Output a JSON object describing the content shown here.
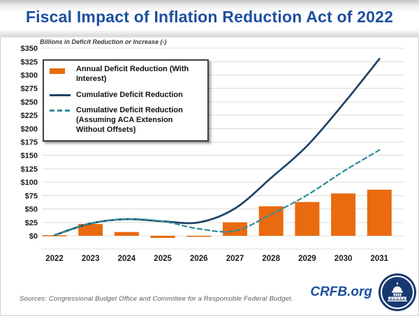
{
  "title": "Fiscal Impact of Inflation Reduction Act of 2022",
  "subtitle": "Billions in Deficit Reduction or Increase (-)",
  "source": "Sources: Congressional Budget Office and Committee for a Responsible Federal Budget.",
  "logo": {
    "text": "CRFB.org"
  },
  "legend": {
    "item1": "Annual Deficit Reduction (With Interest)",
    "item2": "Cumulative Deficit Reduction",
    "item3_line1": "Cumulative Deficit Reduction",
    "item3_line2": "(Assuming ACA Extension Without Offsets)"
  },
  "colors": {
    "title_blue": "#1d4f9f",
    "bar_orange": "#ea6a0f",
    "line_navy": "#1f4367",
    "line_teal_dashed": "#2d8c99",
    "gridline_gray": "#dcdcdc",
    "source_gray": "#595959",
    "logo_navy": "#17386e"
  },
  "chart_data": {
    "type": "bar",
    "subtype": "combo-bar-and-line",
    "title": "Fiscal Impact of Inflation Reduction Act of 2022",
    "ylabel": "Billions in Deficit Reduction or Increase (-)",
    "xlabel": "",
    "categories": [
      "2022",
      "2023",
      "2024",
      "2025",
      "2026",
      "2027",
      "2028",
      "2029",
      "2030",
      "2031"
    ],
    "series": [
      {
        "name": "Annual Deficit Reduction (With Interest)",
        "type": "bar",
        "color": "#ea6a0f",
        "values": [
          1,
          22,
          7,
          -4,
          -2,
          25,
          55,
          63,
          79,
          86
        ]
      },
      {
        "name": "Cumulative Deficit Reduction",
        "type": "line",
        "style": "solid",
        "color": "#1f4367",
        "values": [
          1,
          23,
          31,
          27,
          25,
          51,
          108,
          168,
          246,
          330
        ]
      },
      {
        "name": "Cumulative Deficit Reduction (Assuming ACA Extension Without Offsets)",
        "type": "line",
        "style": "dashed",
        "color": "#2d8c99",
        "values": [
          1,
          23,
          31,
          27,
          13,
          9,
          40,
          76,
          120,
          160
        ]
      }
    ],
    "ylim": [
      -25,
      350
    ],
    "ytick_step": 25,
    "ytick_labels": [
      "$0",
      "$25",
      "$50",
      "$75",
      "$100",
      "$125",
      "$150",
      "$175",
      "$200",
      "$225",
      "$250",
      "$275",
      "$300",
      "$325",
      "$350"
    ],
    "grid": true,
    "legend_position": "top-left"
  }
}
